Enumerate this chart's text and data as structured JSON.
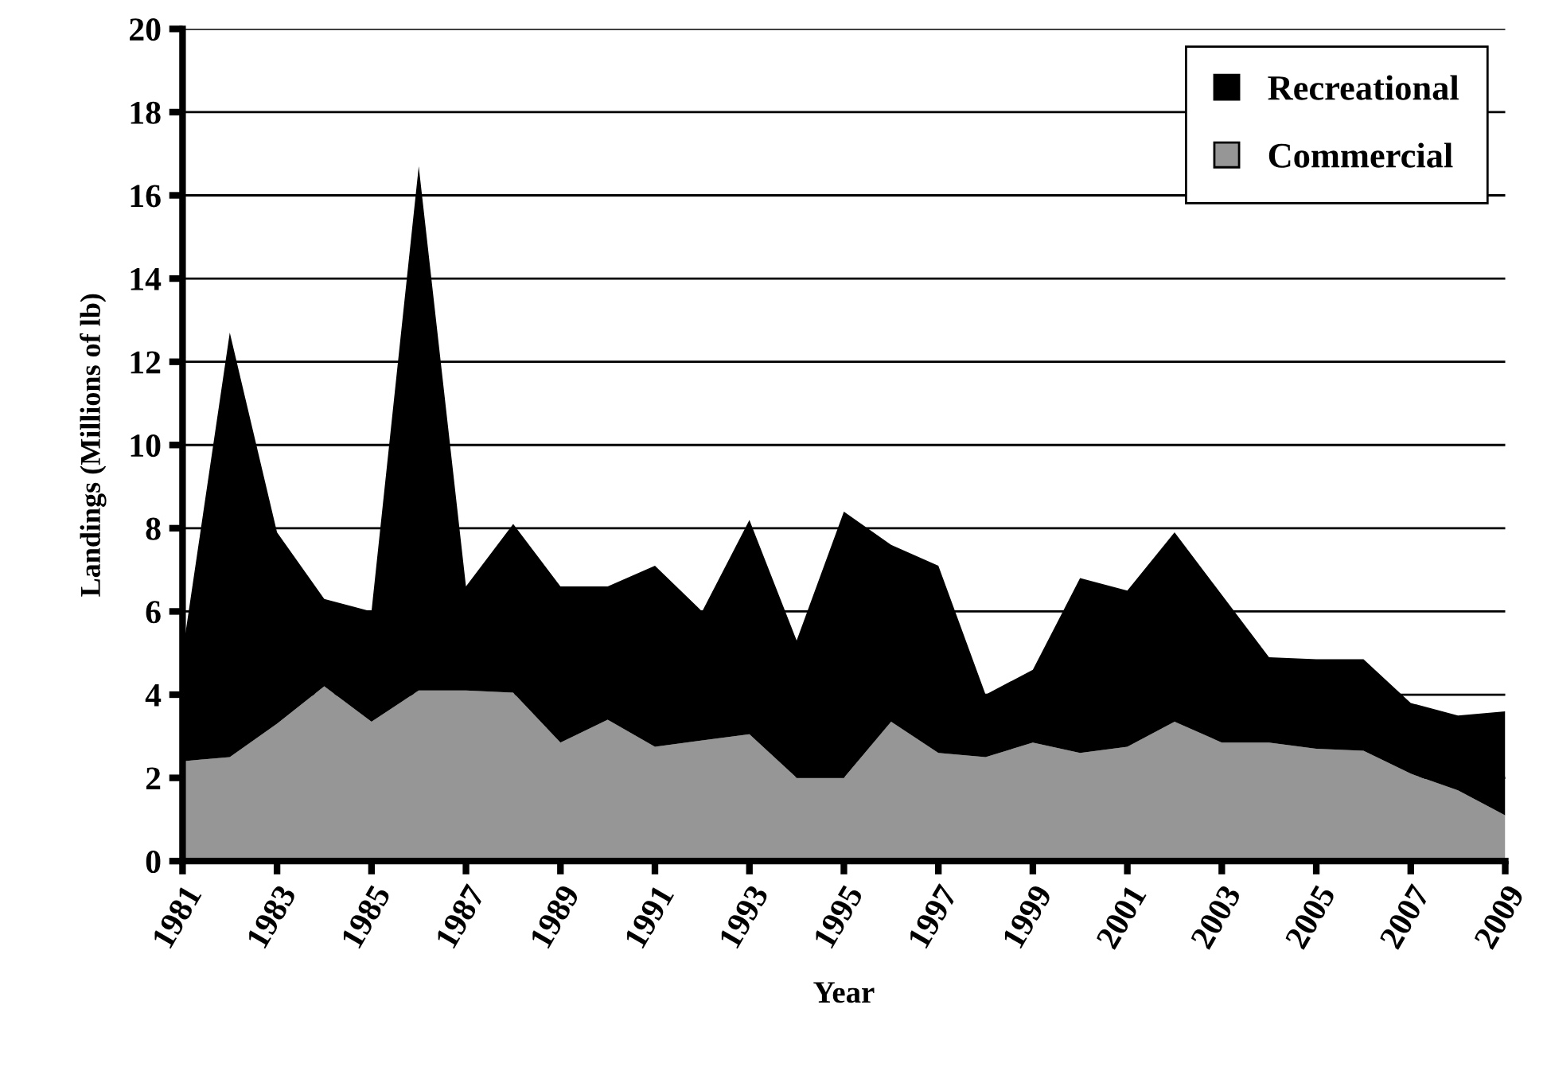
{
  "chart_data": {
    "type": "area",
    "stacked": true,
    "xlabel": "Year",
    "ylabel": "Landings (Millions of lb)",
    "x": [
      1981,
      1982,
      1983,
      1984,
      1985,
      1986,
      1987,
      1988,
      1989,
      1990,
      1991,
      1992,
      1993,
      1994,
      1995,
      1996,
      1997,
      1998,
      1999,
      2000,
      2001,
      2002,
      2003,
      2004,
      2005,
      2006,
      2007,
      2008,
      2009
    ],
    "series": [
      {
        "name": "Commercial",
        "color": "#969696",
        "values": [
          2.4,
          2.5,
          3.3,
          4.2,
          3.35,
          4.1,
          4.1,
          4.05,
          2.85,
          3.4,
          2.75,
          2.9,
          3.05,
          2.0,
          2.0,
          3.35,
          2.6,
          2.5,
          2.85,
          2.6,
          2.75,
          3.35,
          2.85,
          2.85,
          2.7,
          2.65,
          2.1,
          1.7,
          1.1
        ]
      },
      {
        "name": "Recreational",
        "color": "#000000",
        "values": [
          2.6,
          10.2,
          4.6,
          2.1,
          2.65,
          12.6,
          2.5,
          4.05,
          3.75,
          3.2,
          4.35,
          3.1,
          5.15,
          3.3,
          6.4,
          4.25,
          4.5,
          1.5,
          1.75,
          4.2,
          3.75,
          4.55,
          3.55,
          2.05,
          2.15,
          2.2,
          1.7,
          1.8,
          2.5
        ]
      }
    ],
    "xlim": [
      1981,
      2009
    ],
    "xticks": [
      1981,
      1983,
      1985,
      1987,
      1989,
      1991,
      1993,
      1995,
      1997,
      1999,
      2001,
      2003,
      2005,
      2007,
      2009
    ],
    "ylim": [
      0,
      20
    ],
    "yticks": [
      0,
      2,
      4,
      6,
      8,
      10,
      12,
      14,
      16,
      18,
      20
    ],
    "grid": "y",
    "legend": "top right"
  }
}
